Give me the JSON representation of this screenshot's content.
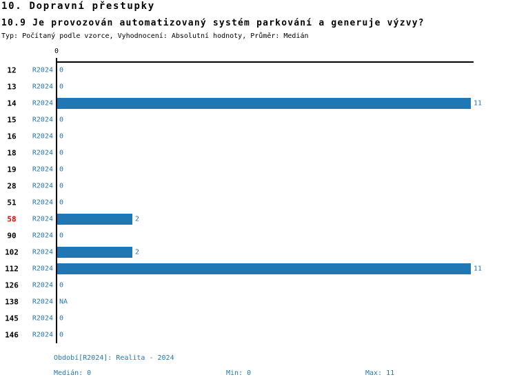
{
  "header": {
    "title": "10. Dopravní přestupky",
    "subtitle": "10.9 Je provozován automatizovaný systém parkování a generuje výzvy?",
    "meta": "Typ: Počítaný podle vzorce, Vyhodnocení: Absolutní hodnoty, Průměr: Medián"
  },
  "chart_data": {
    "type": "bar",
    "orientation": "horizontal",
    "title": "10.9 Je provozován automatizovaný systém parkování a generuje výzvy?",
    "categories": [
      "12",
      "13",
      "14",
      "15",
      "16",
      "18",
      "19",
      "28",
      "51",
      "58",
      "90",
      "102",
      "112",
      "126",
      "138",
      "145",
      "146"
    ],
    "series": [
      {
        "name": "R2024",
        "values": [
          0,
          0,
          11,
          0,
          0,
          0,
          0,
          0,
          0,
          2,
          0,
          2,
          11,
          0,
          null,
          0,
          0
        ],
        "value_labels": [
          "0",
          "0",
          "11",
          "0",
          "0",
          "0",
          "0",
          "0",
          "0",
          "2",
          "0",
          "2",
          "11",
          "0",
          "NA",
          "0",
          "0"
        ]
      }
    ],
    "row_series_tag": "R2024",
    "highlighted_category": "58",
    "axis": {
      "tick_labels": [
        "0"
      ],
      "xlim": [
        0,
        11
      ]
    },
    "grid": false,
    "legend_position": "none",
    "colors": {
      "bar": "#1f77b4",
      "blue_text": "#1f77b4",
      "highlight": "#e00000",
      "text": "#000000"
    }
  },
  "footer": {
    "period_label": "Období[R2024]: Realita - 2024",
    "median_label": "Medián: 0",
    "min_label": "Min: 0",
    "max_label": "Max: 11"
  }
}
